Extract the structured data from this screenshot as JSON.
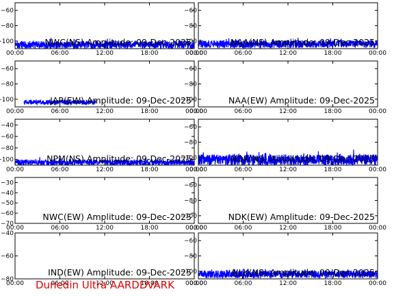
{
  "footer": "Dunedin Ultra AARDDVARK",
  "colors": {
    "trace": "#0000ff",
    "axes": "#000000",
    "footer": "#e00000"
  },
  "x_ticks": [
    "00:00",
    "06:00",
    "12:00",
    "18:00",
    "00:00"
  ],
  "chart_data": [
    {
      "type": "line",
      "id": "p1",
      "title": "NWC(NS) Amplitude: 09-Dec-2025",
      "ylim": [
        -110,
        -50
      ],
      "yticks": [
        -100,
        -80,
        -60
      ],
      "grid": false,
      "series": [
        {
          "profile": "band",
          "base": -105,
          "amp": 5,
          "spike": 3
        }
      ]
    },
    {
      "type": "line",
      "id": "p2",
      "title": "NAA(NS) Amplitude: 09-Dec-2025",
      "ylim": [
        -110,
        -50
      ],
      "yticks": [
        -100,
        -80,
        -60
      ],
      "grid": false,
      "series": [
        {
          "profile": "band",
          "base": -104,
          "amp": 5,
          "spike": 3
        }
      ]
    },
    {
      "type": "line",
      "id": "p3",
      "title": "JAP(EW) Amplitude: 09-Dec-2025",
      "ylim": [
        -110,
        -50
      ],
      "yticks": [
        -100,
        -80,
        -60
      ],
      "grid": false,
      "series": [
        {
          "profile": "partial",
          "base": -104,
          "amp": 3,
          "spike": 1,
          "start": 0.05,
          "end": 0.45
        }
      ]
    },
    {
      "type": "line",
      "id": "p4",
      "title": "NAA(EW) Amplitude: 09-Dec-2025",
      "ylim": [
        -110,
        -50
      ],
      "yticks": [
        -100,
        -80,
        -60
      ],
      "grid": false,
      "series": []
    },
    {
      "type": "line",
      "id": "p5",
      "title": "NPM(NS) Amplitude: 09-Dec-2025",
      "ylim": [
        -110,
        -30
      ],
      "yticks": [
        -100,
        -80,
        -60,
        -40
      ],
      "grid": false,
      "series": [
        {
          "profile": "band",
          "base": -105,
          "amp": 5,
          "spike": 3
        }
      ]
    },
    {
      "type": "line",
      "id": "p6",
      "title": "NDK(NS) Amplitude: 09-Dec-2025",
      "ylim": [
        -110,
        -50
      ],
      "yticks": [
        -100,
        -80,
        -60
      ],
      "grid": false,
      "series": [
        {
          "profile": "band",
          "base": -103,
          "amp": 7,
          "spike": 5
        }
      ]
    },
    {
      "type": "line",
      "id": "p7",
      "title": "NWC(EW) Amplitude: 09-Dec-2025",
      "ylim": [
        -70,
        -25
      ],
      "yticks": [
        -70,
        -60,
        -50,
        -40,
        -30
      ],
      "grid": false,
      "series": []
    },
    {
      "type": "line",
      "id": "p8",
      "title": "NDK(EW) Amplitude: 09-Dec-2025",
      "ylim": [
        -110,
        -50
      ],
      "yticks": [
        -100,
        -80,
        -60
      ],
      "grid": false,
      "series": []
    },
    {
      "type": "line",
      "id": "p9",
      "title": "IND(EW) Amplitude: 09-Dec-2025",
      "ylim": [
        -80,
        -40
      ],
      "yticks": [
        -80,
        -60,
        -40
      ],
      "grid": false,
      "series": []
    },
    {
      "type": "line",
      "id": "p10",
      "title": "NLK(NS) Amplitude: 09-Dec-2025",
      "ylim": [
        -110,
        -50
      ],
      "yticks": [
        -100,
        -80,
        -60
      ],
      "grid": false,
      "series": [
        {
          "profile": "band",
          "base": -104,
          "amp": 5,
          "spike": 3
        }
      ]
    }
  ]
}
